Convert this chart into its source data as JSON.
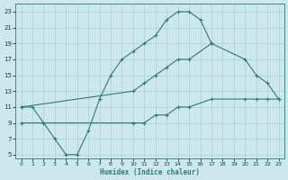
{
  "xlabel": "Humidex (Indice chaleur)",
  "bg_color": "#cce8ec",
  "grid_color": "#b0d4d8",
  "line_color": "#2e7d6e",
  "xlim": [
    -0.5,
    23.5
  ],
  "ylim": [
    4.5,
    24
  ],
  "xticks": [
    0,
    1,
    2,
    3,
    4,
    5,
    6,
    7,
    8,
    9,
    10,
    11,
    12,
    13,
    14,
    15,
    16,
    17,
    18,
    19,
    20,
    21,
    22,
    23
  ],
  "yticks": [
    5,
    7,
    9,
    11,
    13,
    15,
    17,
    19,
    21,
    23
  ],
  "line1_x": [
    0,
    1,
    2,
    3,
    4,
    5,
    6,
    7,
    8,
    9,
    10,
    11,
    12,
    13,
    14,
    15,
    16,
    17
  ],
  "line1_y": [
    11,
    11,
    9,
    7,
    5,
    5,
    8,
    12,
    15,
    17,
    18,
    19,
    20,
    22,
    23,
    23,
    22,
    19
  ],
  "line2_x": [
    0,
    10,
    11,
    12,
    13,
    14,
    15,
    17,
    20,
    21,
    22,
    23
  ],
  "line2_y": [
    11,
    13,
    14,
    15,
    16,
    17,
    17,
    19,
    17,
    15,
    14,
    12
  ],
  "line3_x": [
    0,
    10,
    11,
    12,
    13,
    14,
    15,
    17,
    20,
    21,
    22,
    23
  ],
  "line3_y": [
    9,
    9,
    9,
    10,
    10,
    11,
    11,
    12,
    12,
    12,
    12,
    12
  ]
}
